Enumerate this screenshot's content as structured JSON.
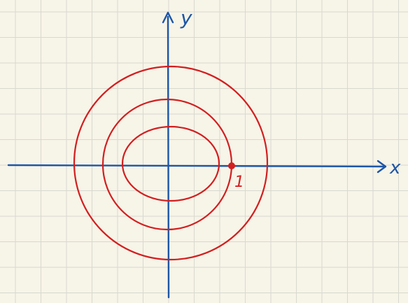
{
  "colors": {
    "paper": "#f7f4e8",
    "grid": "#d9d9cf",
    "axis": "#1d56a6",
    "curve": "#d21f1f"
  },
  "axes": {
    "x_label": "x",
    "y_label": "y"
  },
  "marked_point": {
    "label": "1"
  }
}
